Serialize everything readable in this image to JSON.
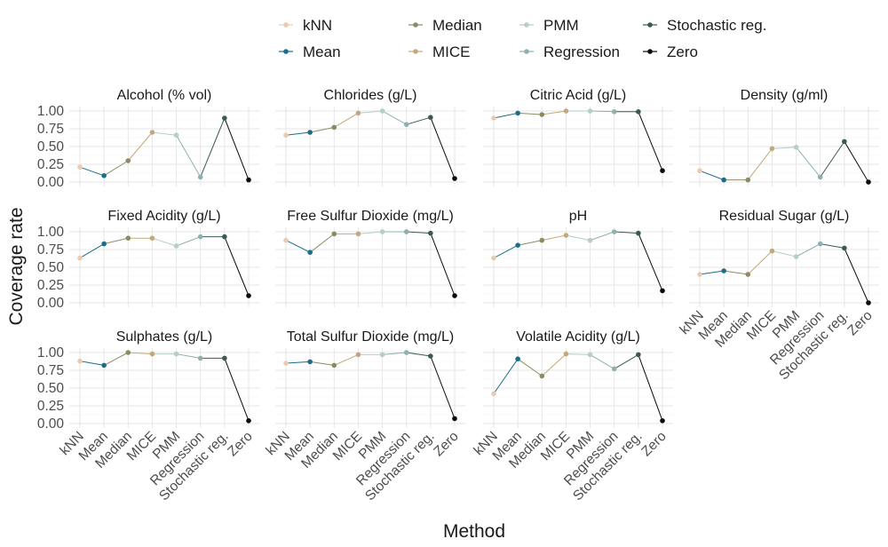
{
  "chart_data": {
    "type": "line",
    "xlabel": "Method",
    "ylabel": "Coverage rate",
    "ylim": [
      0,
      1
    ],
    "y_ticks": [
      "0.00",
      "0.25",
      "0.50",
      "0.75",
      "1.00"
    ],
    "categories": [
      "kNN",
      "Mean",
      "Median",
      "MICE",
      "PMM",
      "Regression",
      "Stochastic reg.",
      "Zero"
    ],
    "colors": {
      "kNN": "#e8cbb0",
      "Mean": "#1a6e8a",
      "Median": "#8b8b66",
      "MICE": "#c4a87a",
      "PMM": "#b5cfc2",
      "Regression": "#8fb0b0",
      "Stochastic reg.": "#3a5a55",
      "Zero": "#0a0a0a"
    },
    "legend": {
      "position": "top",
      "entries": [
        "kNN",
        "Mean",
        "Median",
        "MICE",
        "PMM",
        "Regression",
        "Stochastic reg.",
        "Zero"
      ]
    },
    "grid": true,
    "panels": [
      {
        "title": "Alcohol (% vol)",
        "values": [
          0.21,
          0.09,
          0.3,
          0.7,
          0.66,
          0.07,
          0.9,
          0.03
        ]
      },
      {
        "title": "Chlorides (g/L)",
        "values": [
          0.66,
          0.7,
          0.77,
          0.97,
          1.0,
          0.81,
          0.91,
          0.05
        ]
      },
      {
        "title": "Citric Acid (g/L)",
        "values": [
          0.9,
          0.97,
          0.95,
          1.0,
          1.0,
          0.99,
          0.99,
          0.16
        ]
      },
      {
        "title": "Density (g/ml)",
        "values": [
          0.16,
          0.03,
          0.03,
          0.47,
          0.49,
          0.07,
          0.57,
          0.0
        ]
      },
      {
        "title": "Fixed Acidity (g/L)",
        "values": [
          0.63,
          0.83,
          0.91,
          0.91,
          0.8,
          0.93,
          0.93,
          0.1
        ]
      },
      {
        "title": "Free Sulfur Dioxide (mg/L)",
        "values": [
          0.88,
          0.71,
          0.97,
          0.97,
          1.0,
          1.0,
          0.98,
          0.1
        ]
      },
      {
        "title": "pH",
        "values": [
          0.63,
          0.81,
          0.88,
          0.95,
          0.88,
          1.0,
          0.98,
          0.17
        ]
      },
      {
        "title": "Residual Sugar (g/L)",
        "values": [
          0.4,
          0.45,
          0.4,
          0.73,
          0.65,
          0.83,
          0.77,
          0.0
        ]
      },
      {
        "title": "Sulphates (g/L)",
        "values": [
          0.88,
          0.82,
          1.0,
          0.98,
          0.98,
          0.92,
          0.92,
          0.04
        ]
      },
      {
        "title": "Total Sulfur Dioxide (mg/L)",
        "values": [
          0.85,
          0.87,
          0.82,
          0.97,
          0.97,
          1.0,
          0.95,
          0.07
        ]
      },
      {
        "title": "Volatile Acidity (g/L)",
        "values": [
          0.42,
          0.91,
          0.67,
          0.98,
          0.97,
          0.77,
          0.97,
          0.04
        ]
      }
    ]
  }
}
